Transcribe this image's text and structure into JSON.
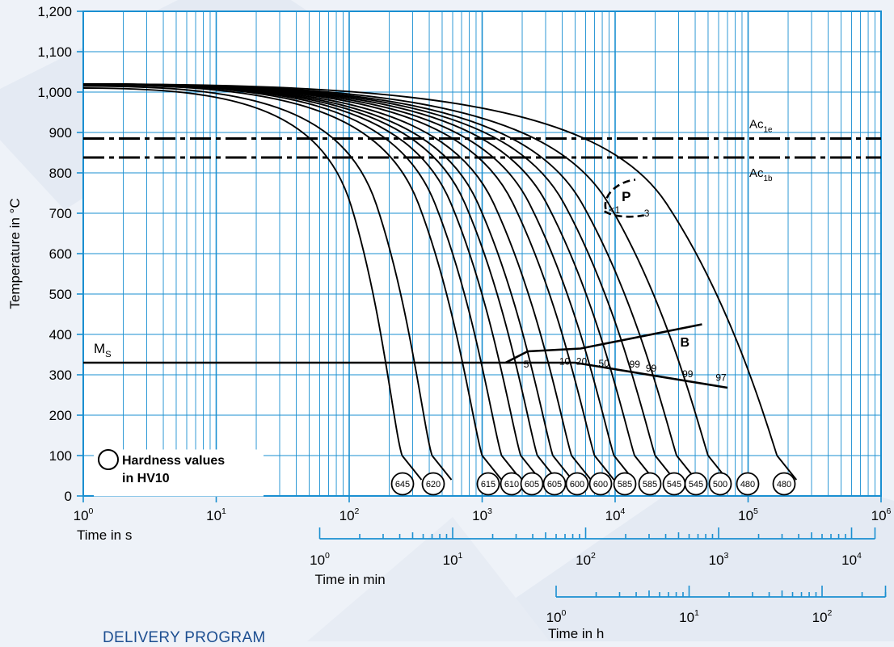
{
  "chart_data": {
    "type": "line",
    "title": "",
    "xlabel": "Time in s",
    "ylabel": "Temperature in °C",
    "x_scale": "log",
    "xlim": [
      1,
      1000000
    ],
    "ylim": [
      0,
      1200
    ],
    "grid": true,
    "y_ticks": [
      "0",
      "100",
      "200",
      "300",
      "400",
      "500",
      "600",
      "700",
      "800",
      "900",
      "1,000",
      "1,100",
      "1,200"
    ],
    "x_ticks": [
      {
        "base": "10",
        "exp": "0"
      },
      {
        "base": "10",
        "exp": "1"
      },
      {
        "base": "10",
        "exp": "2"
      },
      {
        "base": "10",
        "exp": "3"
      },
      {
        "base": "10",
        "exp": "4"
      },
      {
        "base": "10",
        "exp": "5"
      },
      {
        "base": "10",
        "exp": "6"
      }
    ],
    "secondary_axes": [
      {
        "label": "Time in min",
        "ticks": [
          {
            "base": "10",
            "exp": "0"
          },
          {
            "base": "10",
            "exp": "1"
          },
          {
            "base": "10",
            "exp": "2"
          },
          {
            "base": "10",
            "exp": "3"
          },
          {
            "base": "10",
            "exp": "4"
          }
        ],
        "range": [
          1,
          15000
        ]
      },
      {
        "label": "Time in h",
        "ticks": [
          {
            "base": "10",
            "exp": "0"
          },
          {
            "base": "10",
            "exp": "1"
          },
          {
            "base": "10",
            "exp": "2"
          }
        ],
        "range": [
          1,
          300
        ]
      }
    ],
    "reference_lines": [
      {
        "name": "Ac1e",
        "label_main": "Ac",
        "label_sub": "1e",
        "y": 885
      },
      {
        "name": "Ac1b",
        "label_main": "Ac",
        "label_sub": "1b",
        "y": 838
      }
    ],
    "ms_line": {
      "label_main": "M",
      "label_sub": "S",
      "y": 330,
      "x_end": 1500
    },
    "cooling_curves": [
      {
        "start": [
          1,
          1010
        ],
        "end": [
          250,
          100
        ],
        "hardness": "645"
      },
      {
        "start": [
          1,
          1015
        ],
        "end": [
          420,
          100
        ],
        "hardness": "620"
      },
      {
        "start": [
          1,
          1018
        ],
        "end": [
          1000,
          100
        ],
        "hardness": "615"
      },
      {
        "start": [
          1,
          1020
        ],
        "end": [
          1400,
          100
        ],
        "hardness": "610"
      },
      {
        "start": [
          1,
          1020
        ],
        "end": [
          1950,
          100
        ],
        "hardness": "605"
      },
      {
        "start": [
          1,
          1020
        ],
        "end": [
          2600,
          100
        ],
        "hardness": "605"
      },
      {
        "start": [
          1,
          1020
        ],
        "end": [
          3400,
          100
        ],
        "hardness": "600"
      },
      {
        "start": [
          1,
          1020
        ],
        "end": [
          4700,
          100
        ],
        "hardness": "600"
      },
      {
        "start": [
          1,
          1020
        ],
        "end": [
          7000,
          100
        ],
        "hardness": "585"
      },
      {
        "start": [
          1,
          1020
        ],
        "end": [
          9800,
          100
        ],
        "hardness": "585"
      },
      {
        "start": [
          1,
          1020
        ],
        "end": [
          14000,
          100
        ],
        "hardness": "545"
      },
      {
        "start": [
          1,
          1020
        ],
        "end": [
          20000,
          100
        ],
        "hardness": "545"
      },
      {
        "start": [
          1,
          1020
        ],
        "end": [
          29000,
          100
        ],
        "hardness": "500"
      },
      {
        "start": [
          1,
          1020
        ],
        "end": [
          50000,
          100
        ],
        "hardness": "480"
      },
      {
        "start": [
          1,
          1020
        ],
        "end": [
          165000,
          100
        ],
        "hardness": "480"
      }
    ],
    "regions": [
      {
        "name": "P",
        "label": "P"
      },
      {
        "name": "B",
        "label": "B"
      }
    ],
    "annotations": [
      "<1",
      "3",
      "5",
      "10",
      "20",
      "50",
      "99",
      "99",
      "99",
      "97"
    ],
    "legend": {
      "symbol": "circle",
      "line1": "Hardness values",
      "line2": "in HV10",
      "position": "bottom-left"
    }
  },
  "footer": {
    "text": "DELIVERY PROGRAM"
  },
  "colors": {
    "grid": "#1a8fd1",
    "curve": "#000000",
    "background": "#eef2f8",
    "plot": "#ffffff",
    "watermark": "#e3e9f2"
  }
}
